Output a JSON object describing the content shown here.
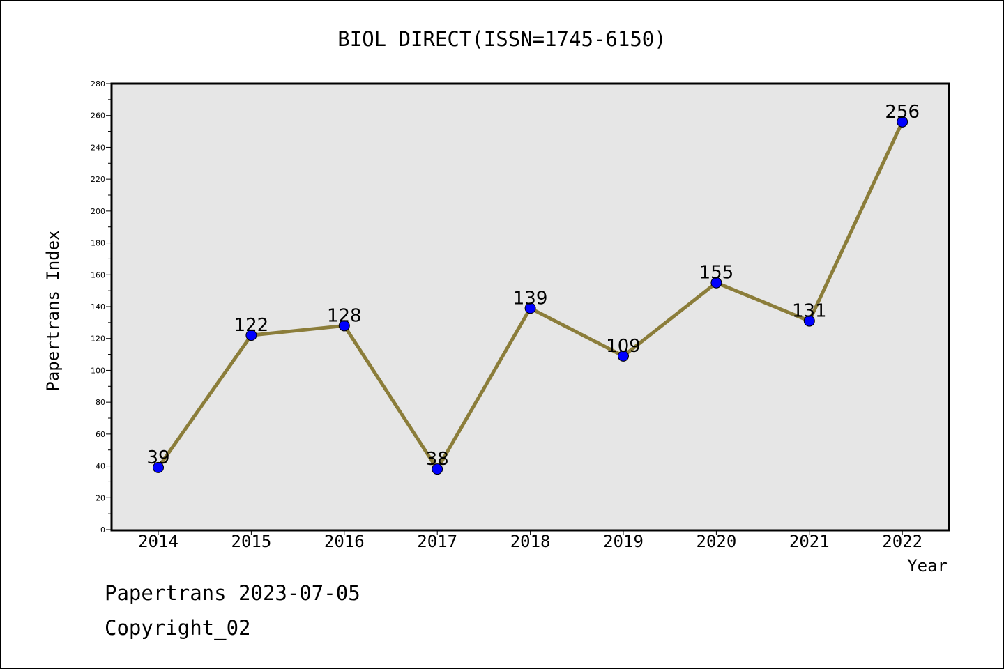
{
  "chart_data": {
    "type": "line",
    "title": "BIOL DIRECT(ISSN=1745-6150)",
    "xlabel": "Year",
    "ylabel": "Papertrans Index",
    "categories": [
      "2014",
      "2015",
      "2016",
      "2017",
      "2018",
      "2019",
      "2020",
      "2021",
      "2022"
    ],
    "series": [
      {
        "values": [
          39,
          122,
          128,
          38,
          139,
          109,
          155,
          131,
          256
        ],
        "line_color": "#8b7d3a",
        "marker_color": "#0000ff"
      }
    ],
    "data_labels": [
      "39",
      "122",
      "128",
      "38",
      "139",
      "109",
      "155",
      "131",
      "256"
    ],
    "ylim": [
      0,
      280
    ],
    "y_ticks": [
      "0",
      "20",
      "40",
      "60",
      "80",
      "100",
      "120",
      "140",
      "160",
      "180",
      "200",
      "220",
      "240",
      "260",
      "280"
    ],
    "grid": false,
    "plot_background": "#e6e6e6"
  },
  "footer": {
    "date_line": "Papertrans 2023-07-05",
    "copyright": "Copyright_02"
  }
}
